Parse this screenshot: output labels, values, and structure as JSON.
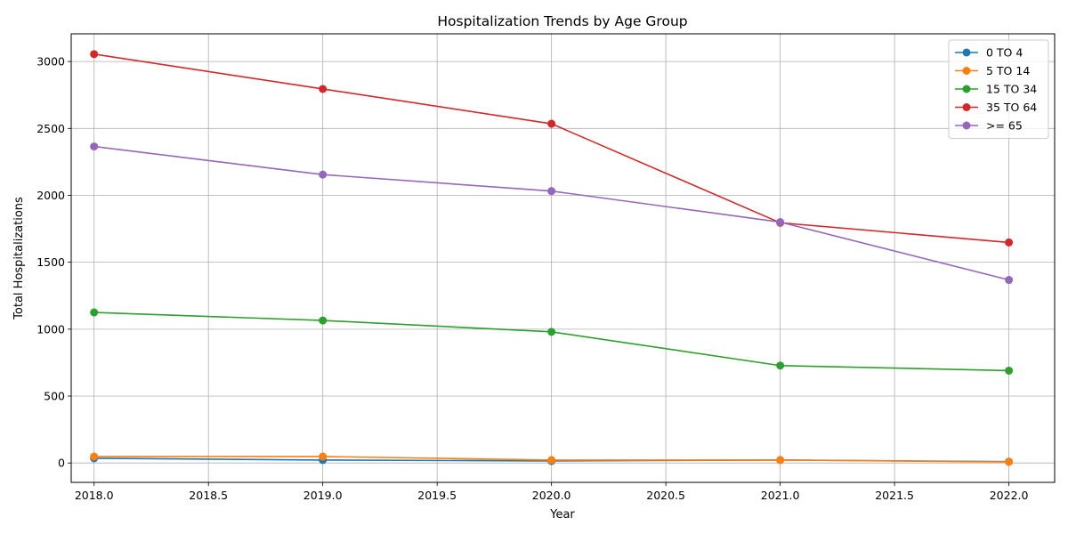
{
  "chart_data": {
    "type": "line",
    "title": "Hospitalization Trends by Age Group",
    "xlabel": "Year",
    "ylabel": "Total Hospitalizations",
    "x": [
      2018,
      2019,
      2020,
      2021,
      2022
    ],
    "xlim": [
      2017.9,
      2022.2
    ],
    "ylim": [
      -145,
      3207
    ],
    "x_ticks": [
      2018.0,
      2018.5,
      2019.0,
      2019.5,
      2020.0,
      2020.5,
      2021.0,
      2021.5,
      2022.0
    ],
    "x_tick_labels": [
      "2018.0",
      "2018.5",
      "2019.0",
      "2019.5",
      "2020.0",
      "2020.5",
      "2021.0",
      "2021.5",
      "2022.0"
    ],
    "y_ticks": [
      0,
      500,
      1000,
      1500,
      2000,
      2500,
      3000
    ],
    "y_tick_labels": [
      "0",
      "500",
      "1000",
      "1500",
      "2000",
      "2500",
      "3000"
    ],
    "grid": true,
    "legend_position": "top-right",
    "marker": "circle",
    "series": [
      {
        "name": "0 TO 4",
        "color": "#1f77b4",
        "values": [
          35,
          22,
          15,
          22,
          10
        ]
      },
      {
        "name": "5 TO 14",
        "color": "#ff7f0e",
        "values": [
          48,
          48,
          22,
          22,
          8
        ]
      },
      {
        "name": "15 TO 34",
        "color": "#2ca02c",
        "values": [
          1125,
          1065,
          980,
          728,
          690
        ]
      },
      {
        "name": "35 TO 64",
        "color": "#d62728",
        "values": [
          3055,
          2795,
          2535,
          1795,
          1648
        ]
      },
      {
        "name": ">= 65",
        "color": "#9467bd",
        "values": [
          2365,
          2155,
          2032,
          1800,
          1368
        ]
      }
    ]
  }
}
